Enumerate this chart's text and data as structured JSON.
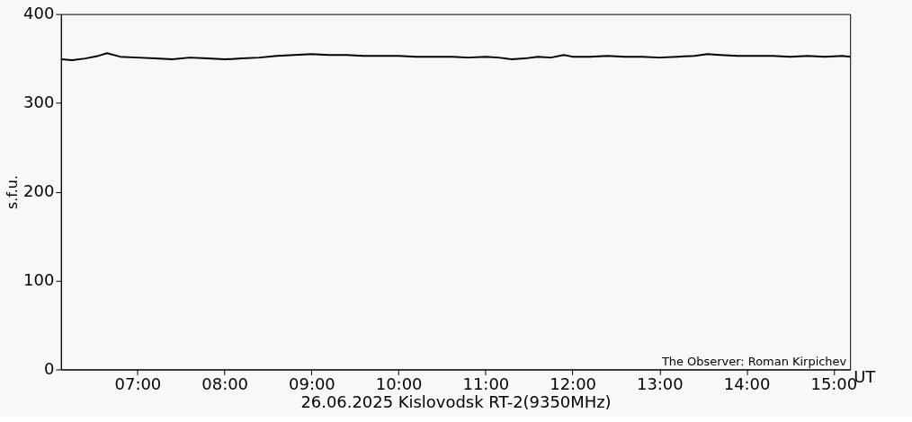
{
  "chart_data": {
    "type": "line",
    "xlabel": "26.06.2025 Kislovodsk RT-2(9350MHz)",
    "ylabel": "s.f.u.",
    "annotations": [
      "The Observer: Roman Kirpichev",
      "UT"
    ],
    "x": [
      6.12,
      6.25,
      6.4,
      6.55,
      6.65,
      6.8,
      7.0,
      7.2,
      7.4,
      7.6,
      7.8,
      8.0,
      8.2,
      8.4,
      8.6,
      8.8,
      9.0,
      9.2,
      9.4,
      9.6,
      9.8,
      10.0,
      10.2,
      10.4,
      10.6,
      10.8,
      11.0,
      11.15,
      11.3,
      11.45,
      11.6,
      11.75,
      11.9,
      12.0,
      12.2,
      12.4,
      12.6,
      12.8,
      13.0,
      13.2,
      13.4,
      13.55,
      13.7,
      13.9,
      14.1,
      14.3,
      14.5,
      14.7,
      14.9,
      15.1,
      15.19
    ],
    "series": [
      {
        "color": "#000000",
        "values": [
          349,
          348,
          350,
          353,
          356,
          352,
          351,
          350,
          349,
          351,
          350,
          349,
          350,
          351,
          353,
          354,
          355,
          354,
          354,
          353,
          353,
          353,
          352,
          352,
          352,
          351,
          352,
          351,
          349,
          350,
          352,
          351,
          354,
          352,
          352,
          353,
          352,
          352,
          351,
          352,
          353,
          355,
          354,
          353,
          353,
          353,
          352,
          353,
          352,
          353,
          352
        ]
      }
    ],
    "xlim": [
      6.12,
      15.19
    ],
    "xticks": [
      {
        "value": 7,
        "label": "07:00"
      },
      {
        "value": 8,
        "label": "08:00"
      },
      {
        "value": 9,
        "label": "09:00"
      },
      {
        "value": 10,
        "label": "10:00"
      },
      {
        "value": 11,
        "label": "11:00"
      },
      {
        "value": 12,
        "label": "12:00"
      },
      {
        "value": 13,
        "label": "13:00"
      },
      {
        "value": 14,
        "label": "14:00"
      },
      {
        "value": 15,
        "label": "15:00"
      }
    ],
    "ylim": [
      0,
      400
    ],
    "yticks": [
      0,
      100,
      200,
      300,
      400
    ],
    "grid": false,
    "line_style": "solid",
    "marker": "none"
  }
}
